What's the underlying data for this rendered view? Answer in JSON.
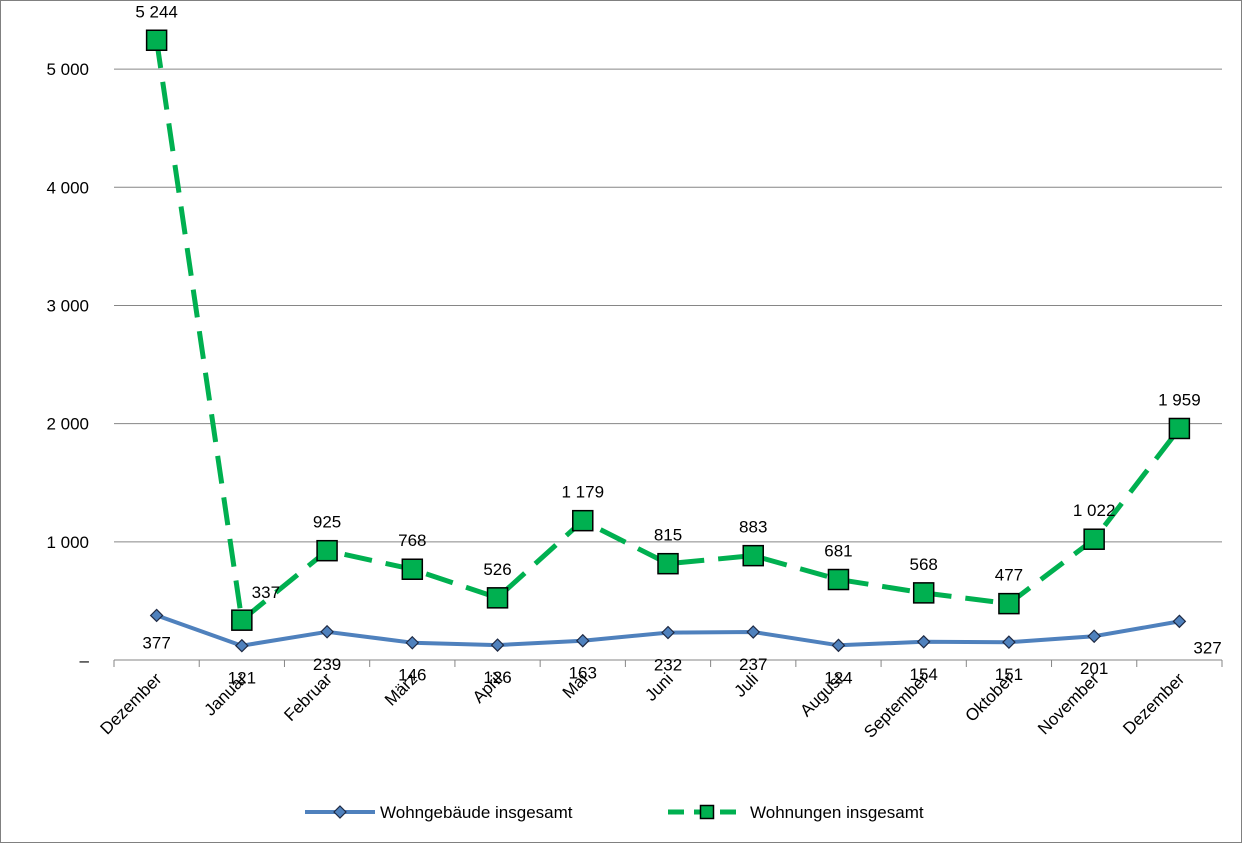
{
  "chart_data": {
    "type": "line",
    "title": "",
    "xlabel": "",
    "ylabel": "",
    "ylim": [
      0,
      5500
    ],
    "y_ticks": [
      {
        "value": 0,
        "label": "–"
      },
      {
        "value": 1000,
        "label": "1 000"
      },
      {
        "value": 2000,
        "label": "2 000"
      },
      {
        "value": 3000,
        "label": "3 000"
      },
      {
        "value": 4000,
        "label": "4 000"
      },
      {
        "value": 5000,
        "label": "5 000"
      }
    ],
    "grid": true,
    "legend_position": "bottom",
    "categories": [
      "Dezember",
      "Januar",
      "Februar",
      "März",
      "April",
      "Mai",
      "Juni",
      "Juli",
      "August",
      "September",
      "Oktober",
      "November",
      "Dezember"
    ],
    "series": [
      {
        "name": "Wohngebäude insgesamt",
        "color": "#4f81bd",
        "marker": "diamond",
        "line_style": "solid",
        "values": [
          377,
          121,
          239,
          146,
          126,
          163,
          232,
          237,
          124,
          154,
          151,
          201,
          327
        ],
        "labels": [
          "377",
          "121",
          "239",
          "146",
          "126",
          "163",
          "232",
          "237",
          "124",
          "154",
          "151",
          "201",
          "327"
        ]
      },
      {
        "name": "Wohnungen insgesamt",
        "color": "#00b050",
        "marker": "square",
        "line_style": "dashed",
        "values": [
          5244,
          337,
          925,
          768,
          526,
          1179,
          815,
          883,
          681,
          568,
          477,
          1022,
          1959
        ],
        "labels": [
          "5 244",
          "337",
          "925",
          "768",
          "526",
          "1 179",
          "815",
          "883",
          "681",
          "568",
          "477",
          "1 022",
          "1 959"
        ]
      }
    ]
  }
}
